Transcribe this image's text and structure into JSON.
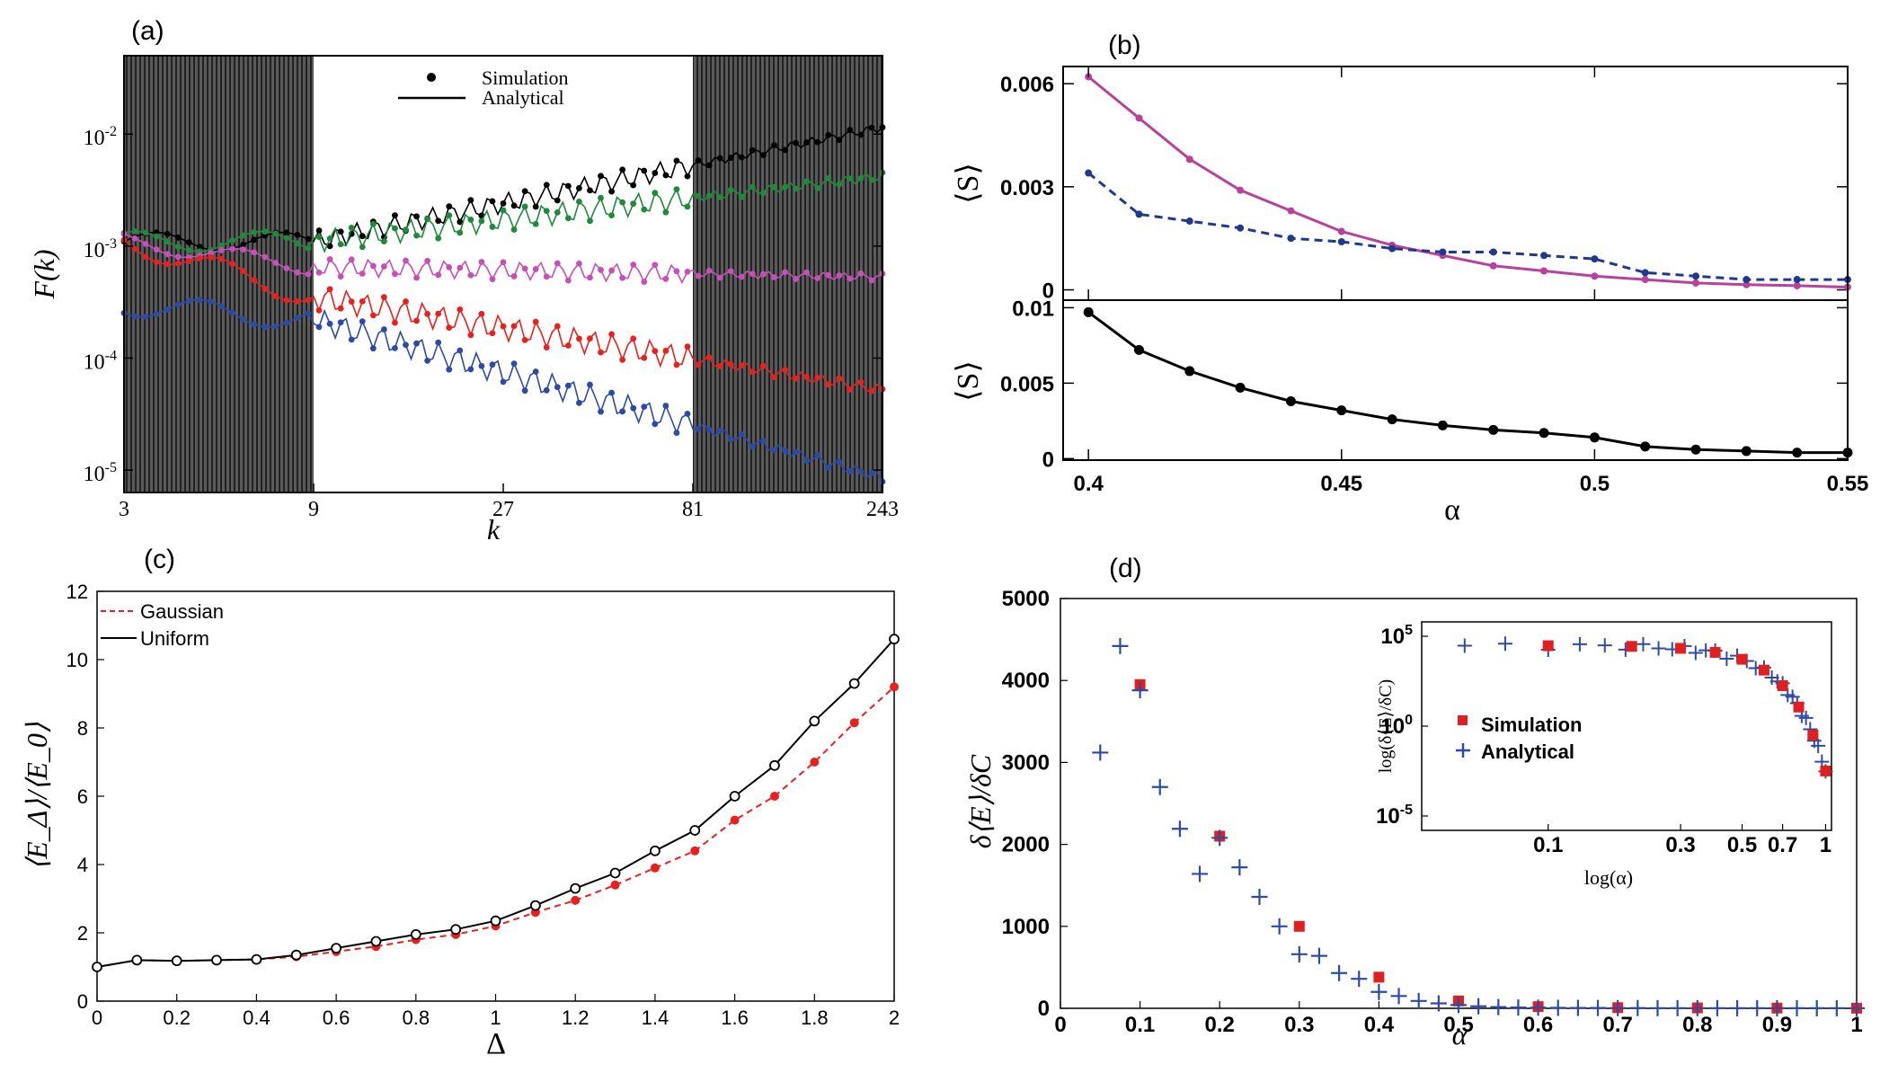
{
  "colors": {
    "black": "#000000",
    "green": "#1f8a3a",
    "magenta": "#c450b8",
    "red": "#e8211e",
    "blue": "#2c4aa6",
    "navy": "#1f3a8c",
    "purple": "#b8419e",
    "hatch": "#4a4a4a",
    "sim_red": "#e02020"
  },
  "chart_data": [
    {
      "id": "a",
      "panel_label": "(a)",
      "type": "line",
      "xscale": "log3",
      "yscale": "log",
      "xlabel": "k",
      "ylabel": "F(k)",
      "x_ticks": [
        "3",
        "9",
        "27",
        "81",
        "243"
      ],
      "y_ticks": [
        "10^-5",
        "10^-4",
        "10^-3",
        "10^-2"
      ],
      "y_tick_labels": [
        {
          "base": "10",
          "exp": "-5"
        },
        {
          "base": "10",
          "exp": "-4"
        },
        {
          "base": "10",
          "exp": "-3"
        },
        {
          "base": "10",
          "exp": "-2"
        }
      ],
      "xlim": [
        3,
        243
      ],
      "ylim_exp": [
        -5.2,
        -1.3
      ],
      "shaded_regions": [
        [
          3,
          9
        ],
        [
          81,
          243
        ]
      ],
      "legend": [
        {
          "label": "Simulation",
          "style": "dot"
        },
        {
          "label": "Analytical",
          "style": "line"
        }
      ],
      "series": [
        {
          "name": "s1",
          "color": "black",
          "start": 0.0011,
          "mid": 0.0011,
          "end": 0.0115,
          "zig": 0.18
        },
        {
          "name": "s2",
          "color": "green",
          "start": 0.0011,
          "mid": 0.0011,
          "end": 0.0042,
          "zig": 0.2
        },
        {
          "name": "s3",
          "color": "magenta",
          "start": 0.0011,
          "mid": 0.00065,
          "end": 0.00053,
          "zig": 0.16
        },
        {
          "name": "s4",
          "color": "red",
          "start": 0.0011,
          "mid": 0.00035,
          "end": 5.2e-05,
          "zig": 0.22
        },
        {
          "name": "s5",
          "color": "blue",
          "start": 0.0003,
          "mid": 0.00022,
          "end": 8.5e-06,
          "zig": 0.22
        }
      ]
    },
    {
      "id": "b",
      "panel_label": "(b)",
      "type": "line",
      "xlabel": "α",
      "ylabel": "⟨S⟩",
      "x": [
        0.4,
        0.41,
        0.42,
        0.43,
        0.44,
        0.45,
        0.46,
        0.47,
        0.48,
        0.49,
        0.5,
        0.51,
        0.52,
        0.53,
        0.54,
        0.55
      ],
      "x_ticks": [
        "0.4",
        "0.45",
        "0.5",
        "0.55"
      ],
      "xlim": [
        0.395,
        0.55
      ],
      "top": {
        "ylim": [
          -0.0003,
          0.0065
        ],
        "y_ticks": [
          "0",
          "0.003",
          "0.006"
        ],
        "series": [
          {
            "name": "magenta solid",
            "color": "purple",
            "dash": false,
            "values": [
              0.0062,
              0.005,
              0.0038,
              0.0029,
              0.0023,
              0.0017,
              0.0013,
              0.001,
              0.0007,
              0.00055,
              0.0004,
              0.0003,
              0.0002,
              0.00015,
              0.00012,
              8e-05
            ]
          },
          {
            "name": "blue dashed",
            "color": "navy",
            "dash": true,
            "values": [
              0.0034,
              0.0022,
              0.002,
              0.0018,
              0.0015,
              0.0014,
              0.0012,
              0.0011,
              0.0011,
              0.001,
              0.0009,
              0.0005,
              0.0004,
              0.0003,
              0.0003,
              0.0003
            ]
          }
        ]
      },
      "bottom": {
        "ylim": [
          -0.0001,
          0.0105
        ],
        "y_ticks": [
          "0",
          "0.005",
          "0.01"
        ],
        "series": [
          {
            "name": "black",
            "color": "black",
            "dash": false,
            "values": [
              0.0097,
              0.0072,
              0.0058,
              0.0047,
              0.0038,
              0.0032,
              0.0026,
              0.0022,
              0.0019,
              0.0017,
              0.0014,
              0.0008,
              0.0006,
              0.0005,
              0.0004,
              0.0004
            ]
          }
        ]
      }
    },
    {
      "id": "c",
      "panel_label": "(c)",
      "type": "line",
      "xlabel": "Δ",
      "ylabel": "⟨E_Δ⟩/⟨E_0⟩",
      "xlim": [
        0,
        2
      ],
      "ylim": [
        0,
        12
      ],
      "x_ticks": [
        "0",
        "0.2",
        "0.4",
        "0.6",
        "0.8",
        "1",
        "1.2",
        "1.4",
        "1.6",
        "1.8",
        "2"
      ],
      "y_ticks": [
        "0",
        "2",
        "4",
        "6",
        "8",
        "10",
        "12"
      ],
      "legend": [
        {
          "label": "Gaussian",
          "style": "dashed-red"
        },
        {
          "label": "Uniform",
          "style": "solid-black"
        }
      ],
      "x": [
        0,
        0.1,
        0.2,
        0.3,
        0.4,
        0.5,
        0.6,
        0.7,
        0.8,
        0.9,
        1.0,
        1.1,
        1.2,
        1.3,
        1.4,
        1.5,
        1.6,
        1.7,
        1.8,
        1.9,
        2.0
      ],
      "series": [
        {
          "name": "Gaussian",
          "color": "red",
          "dash": true,
          "marker": "filled",
          "values": [
            1.0,
            1.2,
            1.18,
            1.2,
            1.22,
            1.3,
            1.45,
            1.6,
            1.8,
            1.95,
            2.2,
            2.6,
            2.95,
            3.4,
            3.9,
            4.4,
            5.3,
            6.0,
            7.0,
            8.15,
            9.2
          ]
        },
        {
          "name": "Uniform",
          "color": "black",
          "dash": false,
          "marker": "open",
          "values": [
            1.0,
            1.2,
            1.18,
            1.2,
            1.22,
            1.35,
            1.55,
            1.75,
            1.95,
            2.1,
            2.35,
            2.8,
            3.3,
            3.75,
            4.4,
            5.0,
            6.0,
            6.9,
            8.2,
            9.3,
            10.6
          ]
        }
      ]
    },
    {
      "id": "d",
      "panel_label": "(d)",
      "type": "scatter",
      "xlabel": "α",
      "ylabel": "δ⟨E⟩/δC",
      "xlim": [
        0,
        1
      ],
      "ylim": [
        0,
        5000
      ],
      "x_ticks": [
        "0",
        "0.1",
        "0.2",
        "0.3",
        "0.4",
        "0.5",
        "0.6",
        "0.7",
        "0.8",
        "0.9",
        "1"
      ],
      "y_ticks": [
        "0",
        "1000",
        "2000",
        "3000",
        "4000",
        "5000"
      ],
      "series": [
        {
          "name": "Simulation",
          "marker": "square",
          "color": "sim_red",
          "x": [
            0.1,
            0.2,
            0.3,
            0.4,
            0.5,
            0.6,
            0.7,
            0.8,
            0.9,
            1.0
          ],
          "y": [
            3950,
            2100,
            1000,
            380,
            90,
            20,
            8,
            5,
            3,
            2
          ]
        },
        {
          "name": "Analytical",
          "marker": "plus",
          "color": "blue",
          "x": [
            0.05,
            0.075,
            0.1,
            0.125,
            0.15,
            0.175,
            0.2,
            0.225,
            0.25,
            0.275,
            0.3,
            0.325,
            0.35,
            0.375,
            0.4,
            0.425,
            0.45,
            0.475,
            0.5,
            0.525,
            0.55,
            0.575,
            0.6,
            0.625,
            0.65,
            0.675,
            0.7,
            0.725,
            0.75,
            0.775,
            0.8,
            0.825,
            0.85,
            0.875,
            0.9,
            0.925,
            0.95,
            0.975,
            1.0
          ],
          "y": [
            3120,
            4420,
            3880,
            2700,
            2190,
            1640,
            2080,
            1720,
            1360,
            1000,
            660,
            640,
            430,
            360,
            200,
            150,
            90,
            60,
            40,
            25,
            15,
            10,
            8,
            6,
            5,
            4,
            3,
            3,
            2,
            2,
            2,
            2,
            1,
            1,
            1,
            1,
            1,
            1,
            1
          ]
        }
      ],
      "inset": {
        "xlabel": "log(α)",
        "ylabel": "log(δ⟨E⟩/δC)",
        "x_ticks": [
          "0.1",
          "0.3",
          "0.5",
          "0.7",
          "1"
        ],
        "y_ticks": [
          {
            "base": "10",
            "exp": "5"
          },
          {
            "base": "10",
            "exp": "0"
          },
          {
            "base": "10",
            "exp": "-5"
          }
        ],
        "xlim": [
          0.035,
          1.05
        ],
        "ylim_exp": [
          -5.8,
          5.8
        ],
        "legend": [
          {
            "label": "Simulation",
            "style": "square"
          },
          {
            "label": "Analytical",
            "style": "plus"
          }
        ]
      }
    }
  ]
}
